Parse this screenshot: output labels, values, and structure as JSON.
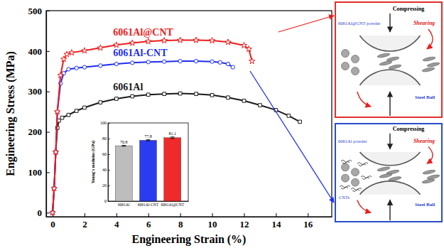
{
  "chart_data": [
    {
      "type": "line",
      "x_label": "Engineering Strain (%)",
      "y_label": "Engineering Stress (MPa)",
      "xlim": [
        -0.4,
        17.5
      ],
      "xticks": [
        0,
        2,
        4,
        6,
        8,
        10,
        12,
        14,
        16
      ],
      "ylim": [
        -10,
        500
      ],
      "yticks": [
        0,
        100,
        200,
        300,
        400,
        500
      ],
      "grid": false,
      "series": [
        {
          "name": "6061Al",
          "color": "#1a1a1a",
          "marker": "square",
          "x": [
            0,
            0.1,
            0.2,
            0.3,
            0.4,
            0.6,
            1,
            1.5,
            2,
            3,
            4,
            5,
            6,
            7,
            8,
            9,
            10,
            11,
            12,
            13,
            14,
            14.8,
            15.5
          ],
          "values": [
            0,
            60,
            150,
            210,
            228,
            235,
            242,
            252,
            260,
            273,
            282,
            288,
            292,
            294,
            295,
            294,
            291,
            285,
            277,
            266,
            254,
            240,
            225
          ]
        },
        {
          "name": "6061Al-CNT",
          "color": "#1f2ff0",
          "marker": "circle",
          "x": [
            0,
            0.1,
            0.2,
            0.3,
            0.5,
            0.7,
            1,
            1.5,
            2,
            3,
            4,
            5,
            6,
            7,
            8,
            9,
            10,
            10.5,
            11,
            11.3
          ],
          "values": [
            0,
            60,
            150,
            250,
            320,
            345,
            355,
            358,
            360,
            364,
            368,
            371,
            373,
            374,
            375,
            375,
            374,
            372,
            368,
            360
          ]
        },
        {
          "name": "6061Al@CNT",
          "color": "#ee1c1c",
          "marker": "star",
          "x": [
            0,
            0.1,
            0.2,
            0.3,
            0.5,
            0.7,
            0.9,
            1.2,
            2,
            3,
            4,
            5,
            6,
            7,
            8,
            9,
            10,
            11,
            12,
            12.3,
            12.5
          ],
          "values": [
            0,
            60,
            150,
            250,
            340,
            380,
            392,
            396,
            401,
            408,
            415,
            420,
            424,
            426,
            427,
            427,
            426,
            422,
            414,
            405,
            375
          ]
        }
      ]
    },
    {
      "type": "bar",
      "y_label": "Young's modulus (GPa)",
      "categories": [
        "6061Al",
        "6061Al-CNT",
        "6061Al@CNT"
      ],
      "values": [
        70.8,
        77.8,
        81.1
      ],
      "errors": [
        0.6,
        0.8,
        1.0
      ],
      "colors": [
        "#bdbdbd",
        "#2b3cf0",
        "#ee2a2a"
      ],
      "ylim": [
        0,
        100
      ],
      "yticks": [
        0,
        20,
        40,
        60,
        80,
        100
      ],
      "data_labels": true
    }
  ],
  "diagram": {
    "panels": [
      {
        "color": "#e0302a",
        "compress_label": "Compressing",
        "powder_label": "6061Al@CNT powder",
        "shear_label": "Shearing",
        "ball_label": "Steel Ball"
      },
      {
        "color": "#2a4ec8",
        "compress_label": "Compressing",
        "powder_label": "6061Al powder",
        "cnt_label": "CNTs",
        "shear_label": "Shearing",
        "ball_label": "Steel Ball"
      }
    ]
  }
}
